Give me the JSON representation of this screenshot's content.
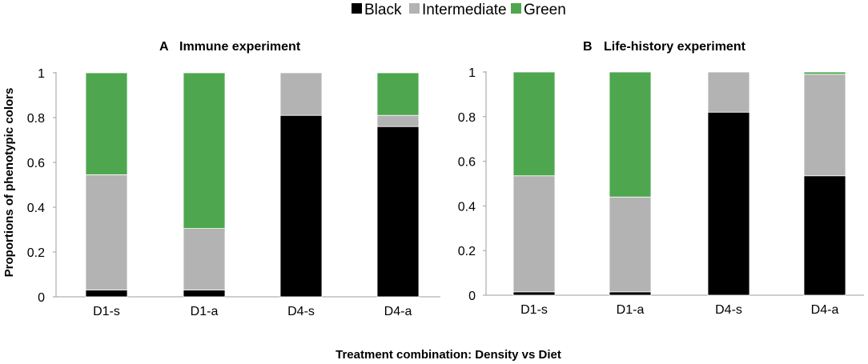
{
  "legend": [
    {
      "label": "Black",
      "color": "#000000"
    },
    {
      "label": "Intermediate",
      "color": "#b3b3b3"
    },
    {
      "label": "Green",
      "color": "#4ea74f"
    }
  ],
  "y_axis_title": "Proportions of phenotypic colors",
  "x_axis_title": "Treatment combination: Density vs Diet",
  "chart_data": [
    {
      "type": "bar",
      "stacked": true,
      "panel_letter": "A",
      "title": "Immune experiment",
      "categories": [
        "D1-s",
        "D1-a",
        "D4-s",
        "D4-a"
      ],
      "series": [
        {
          "name": "Black",
          "color": "#000000",
          "values": [
            0.03,
            0.03,
            0.81,
            0.76
          ]
        },
        {
          "name": "Intermediate",
          "color": "#b3b3b3",
          "values": [
            0.515,
            0.275,
            0.19,
            0.05
          ]
        },
        {
          "name": "Green",
          "color": "#4ea74f",
          "values": [
            0.455,
            0.695,
            0.0,
            0.19
          ]
        }
      ],
      "ylim": [
        0,
        1
      ],
      "yticks": [
        "0",
        "0.2",
        "0.4",
        "0.6",
        "0.8",
        "1"
      ],
      "ylabel": "Proportions of phenotypic colors",
      "xlabel": "Treatment combination: Density vs Diet"
    },
    {
      "type": "bar",
      "stacked": true,
      "panel_letter": "B",
      "title": "Life-history experiment",
      "categories": [
        "D1-s",
        "D1-a",
        "D4-s",
        "D4-a"
      ],
      "series": [
        {
          "name": "Black",
          "color": "#000000",
          "values": [
            0.015,
            0.015,
            0.82,
            0.535
          ]
        },
        {
          "name": "Intermediate",
          "color": "#b3b3b3",
          "values": [
            0.52,
            0.425,
            0.18,
            0.455
          ]
        },
        {
          "name": "Green",
          "color": "#4ea74f",
          "values": [
            0.465,
            0.56,
            0.0,
            0.01
          ]
        }
      ],
      "ylim": [
        0,
        1
      ],
      "yticks": [
        "0",
        "0.2",
        "0.4",
        "0.6",
        "0.8",
        "1"
      ],
      "ylabel": "",
      "xlabel": "Treatment combination: Density vs Diet"
    }
  ]
}
